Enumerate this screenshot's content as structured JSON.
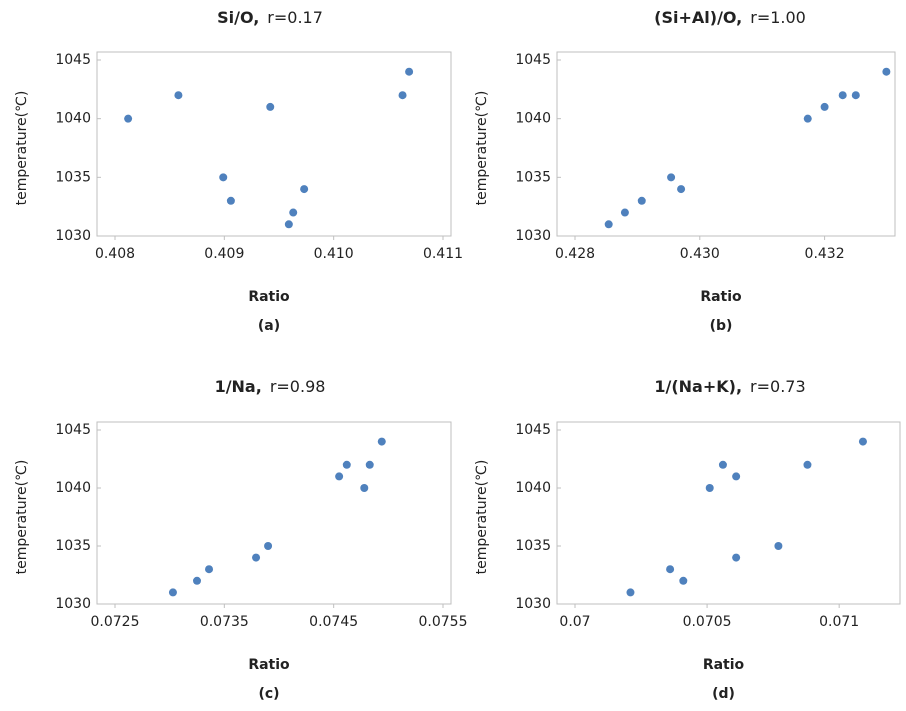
{
  "chart_data": [
    {
      "type": "scatter",
      "title": "Si/O,",
      "subtitle": "r=0.17",
      "caption": "(a)",
      "x_label": "Ratio",
      "y_label": "temperature(℃)",
      "color": "#4f81bd",
      "x": [
        0.40812,
        0.40858,
        0.40942,
        0.40899,
        0.40906,
        0.40963,
        0.40959,
        0.40973,
        0.41063,
        0.41069
      ],
      "values": [
        1040,
        1042,
        1041,
        1035,
        1033,
        1032,
        1031,
        1034,
        1042,
        1044
      ],
      "xlim": [
        0.408,
        0.411
      ],
      "xticks": [
        {
          "value": 0.408,
          "label": "0.408"
        },
        {
          "value": 0.409,
          "label": "0.409"
        },
        {
          "value": 0.41,
          "label": "0.410"
        },
        {
          "value": 0.411,
          "label": "0.411"
        }
      ],
      "ylim": [
        1030,
        1045
      ],
      "yticks": [
        1030,
        1035,
        1040,
        1045
      ]
    },
    {
      "type": "scatter",
      "title": "(Si+Al)/O,",
      "subtitle": "r=1.00",
      "caption": "(b)",
      "x_label": "Ratio",
      "y_label": "temperature(℃)",
      "color": "#4f81bd",
      "x": [
        0.42854,
        0.4288,
        0.42907,
        0.42954,
        0.4297,
        0.43173,
        0.432,
        0.43229,
        0.4325,
        0.43299
      ],
      "values": [
        1031,
        1032,
        1033,
        1035,
        1034,
        1040,
        1041,
        1042,
        1042,
        1044
      ],
      "xlim": [
        0.428,
        0.433
      ],
      "xticks": [
        {
          "value": 0.428,
          "label": "0.428"
        },
        {
          "value": 0.43,
          "label": "0.430"
        },
        {
          "value": 0.432,
          "label": "0.432"
        }
      ],
      "ylim": [
        1030,
        1045
      ],
      "yticks": [
        1030,
        1035,
        1040,
        1045
      ]
    },
    {
      "type": "scatter",
      "title": "1/Na,",
      "subtitle": "r=0.98",
      "caption": "(c)",
      "x_label": "Ratio",
      "y_label": "temperature(℃)",
      "color": "#4f81bd",
      "x": [
        0.07303,
        0.07325,
        0.07336,
        0.07379,
        0.0739,
        0.07455,
        0.07462,
        0.07478,
        0.07483,
        0.07494
      ],
      "values": [
        1031,
        1032,
        1033,
        1034,
        1035,
        1041,
        1042,
        1040,
        1042,
        1044
      ],
      "xlim": [
        0.0725,
        0.0755
      ],
      "xticks": [
        0.0725,
        0.0735,
        0.0745,
        0.0755
      ],
      "ylim": [
        1030,
        1045
      ],
      "yticks": [
        1030,
        1035,
        1040,
        1045
      ]
    },
    {
      "type": "scatter",
      "title": "1/(Na+K),",
      "subtitle": "r=0.73",
      "caption": "(d)",
      "x_label": "Ratio",
      "y_label": "temperature(℃)",
      "color": "#4f81bd",
      "x": [
        0.07021,
        0.07036,
        0.07041,
        0.07051,
        0.07056,
        0.07061,
        0.07061,
        0.07077,
        0.07088,
        0.07109
      ],
      "values": [
        1031,
        1033,
        1032,
        1040,
        1042,
        1041,
        1034,
        1035,
        1042,
        1044
      ],
      "xlim": [
        0.07,
        0.0712
      ],
      "xticks": [
        0.07,
        0.0705,
        0.071
      ],
      "ylim": [
        1030,
        1045
      ],
      "yticks": [
        1030,
        1035,
        1040,
        1045
      ]
    }
  ]
}
